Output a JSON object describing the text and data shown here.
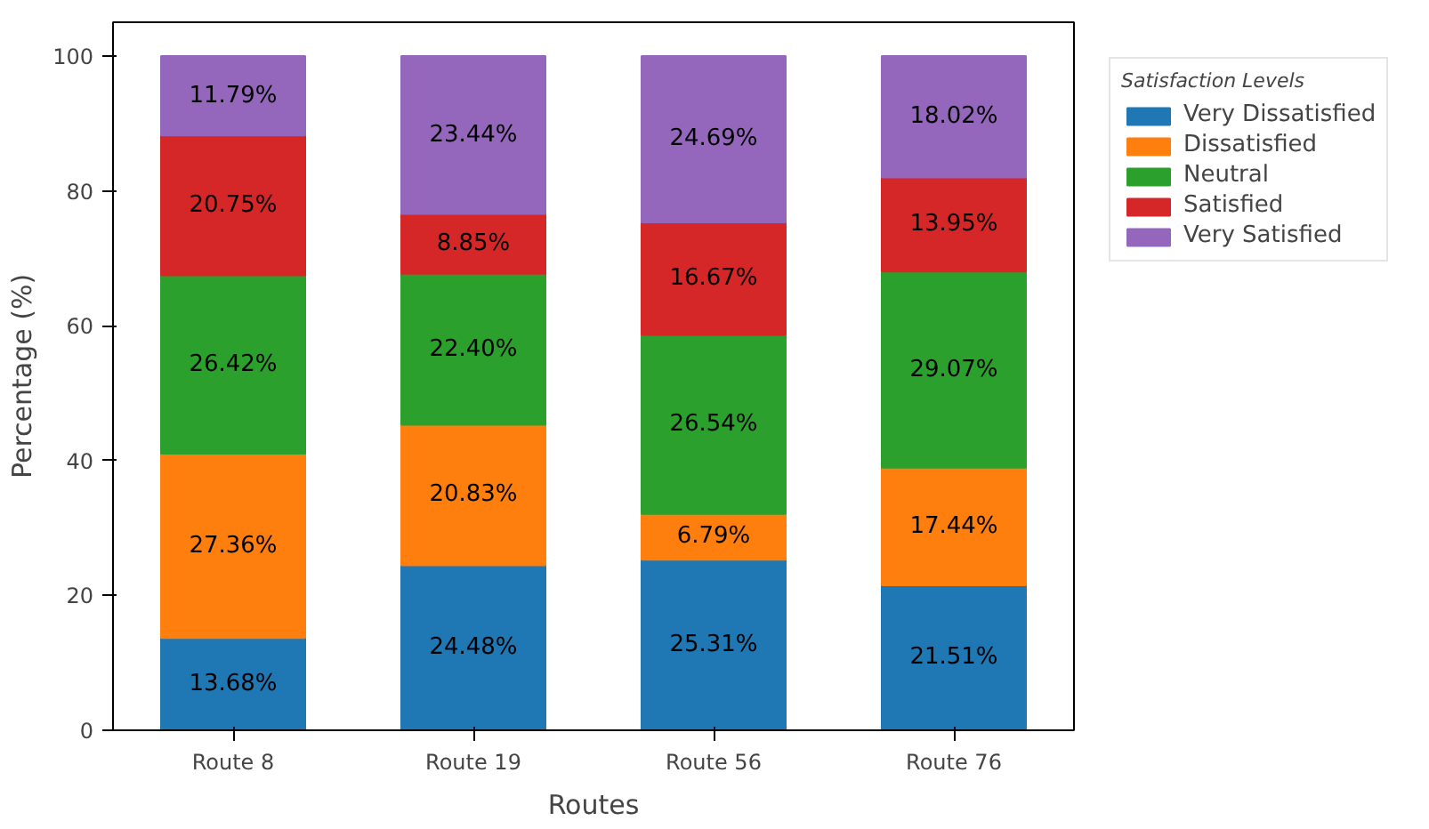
{
  "chart_data": {
    "type": "bar",
    "stacked": true,
    "xlabel": "Routes",
    "ylabel": "Percentage (%)",
    "legend_title": "Satisfaction Levels",
    "legend": "right",
    "grid": false,
    "categories": [
      "Route 8",
      "Route 19",
      "Route 56",
      "Route 76"
    ],
    "ylim": [
      0,
      105
    ],
    "yticks": [
      0,
      20,
      40,
      60,
      80,
      100
    ],
    "series": [
      {
        "name": "Very Dissatisfied",
        "color": "#1f77b4",
        "values": [
          13.68,
          24.48,
          25.31,
          21.51
        ],
        "value_labels": [
          "13.68%",
          "24.48%",
          "25.31%",
          "21.51%"
        ]
      },
      {
        "name": "Dissatisfied",
        "color": "#ff7f0e",
        "values": [
          27.36,
          20.83,
          6.79,
          17.44
        ],
        "value_labels": [
          "27.36%",
          "20.83%",
          "6.79%",
          "17.44%"
        ]
      },
      {
        "name": "Neutral",
        "color": "#2ca02c",
        "values": [
          26.42,
          22.4,
          26.54,
          29.07
        ],
        "value_labels": [
          "26.42%",
          "22.40%",
          "26.54%",
          "29.07%"
        ]
      },
      {
        "name": "Satisfied",
        "color": "#d62728",
        "values": [
          20.75,
          8.85,
          16.67,
          13.95
        ],
        "value_labels": [
          "20.75%",
          "8.85%",
          "16.67%",
          "13.95%"
        ]
      },
      {
        "name": "Very Satisfied",
        "color": "#9467bd",
        "values": [
          11.79,
          23.44,
          24.69,
          18.02
        ],
        "value_labels": [
          "11.79%",
          "23.44%",
          "24.69%",
          "18.02%"
        ]
      }
    ]
  }
}
